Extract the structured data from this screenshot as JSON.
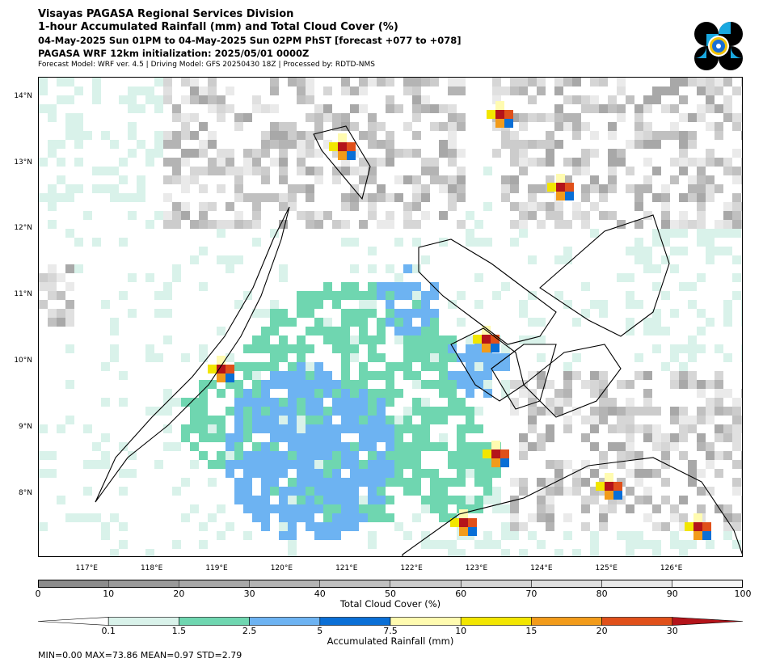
{
  "header": {
    "office": "Visayas PAGASA Regional Services Division",
    "product": "1-hour Accumulated Rainfall (mm) and Total Cloud Cover (%)",
    "valid_time": "04-May-2025 Sun 01PM to 04-May-2025 Sun 02PM PhST [forecast +077 to +078]",
    "init": "PAGASA WRF 12km initialization: 2025/05/01 0000Z",
    "model_info": "Forecast Model: WRF ver. 4.5 | Driving Model: GFS 20250430 18Z | Processed by: RDTD-NMS"
  },
  "map": {
    "lat_labels": [
      "14°N",
      "13°N",
      "12°N",
      "11°N",
      "10°N",
      "9°N",
      "8°N"
    ],
    "lon_labels": [
      "117°E",
      "118°E",
      "119°E",
      "120°E",
      "121°E",
      "122°E",
      "123°E",
      "124°E",
      "125°E",
      "126°E"
    ],
    "lat_values": [
      14,
      13,
      12,
      11,
      10,
      9,
      8
    ],
    "lon_values": [
      117,
      118,
      119,
      120,
      121,
      122,
      123,
      124,
      125,
      126
    ],
    "extent": {
      "lon_min": 116.25,
      "lon_max": 127.1,
      "lat_min": 7.05,
      "lat_max": 14.3
    }
  },
  "cloud_legend": {
    "title": "Total Cloud Cover (%)",
    "ticks": [
      "0",
      "10",
      "20",
      "30",
      "40",
      "50",
      "60",
      "70",
      "80",
      "90",
      "100"
    ],
    "colors": [
      "#8c8c8c",
      "#9a9a9a",
      "#a8a8a8",
      "#b4b4b4",
      "#c0c0c0",
      "#cccccc",
      "#d6d6d6",
      "#e0e0e0",
      "#eaeaea",
      "#f6f6f6"
    ]
  },
  "rain_legend": {
    "title": "Accumulated Rainfall (mm)",
    "ticks": [
      "0.1",
      "1.5",
      "2.5",
      "5",
      "7.5",
      "10",
      "15",
      "20",
      "30"
    ],
    "colors": [
      "#ffffff",
      "#d9f2ea",
      "#6fd6b0",
      "#6db3f2",
      "#0a6fd6",
      "#fffbb0",
      "#f2e600",
      "#f29b1a",
      "#e0501a",
      "#b4141a"
    ]
  },
  "stats": "MIN=0.00   MAX=73.86   MEAN=0.97   STD=2.79"
}
